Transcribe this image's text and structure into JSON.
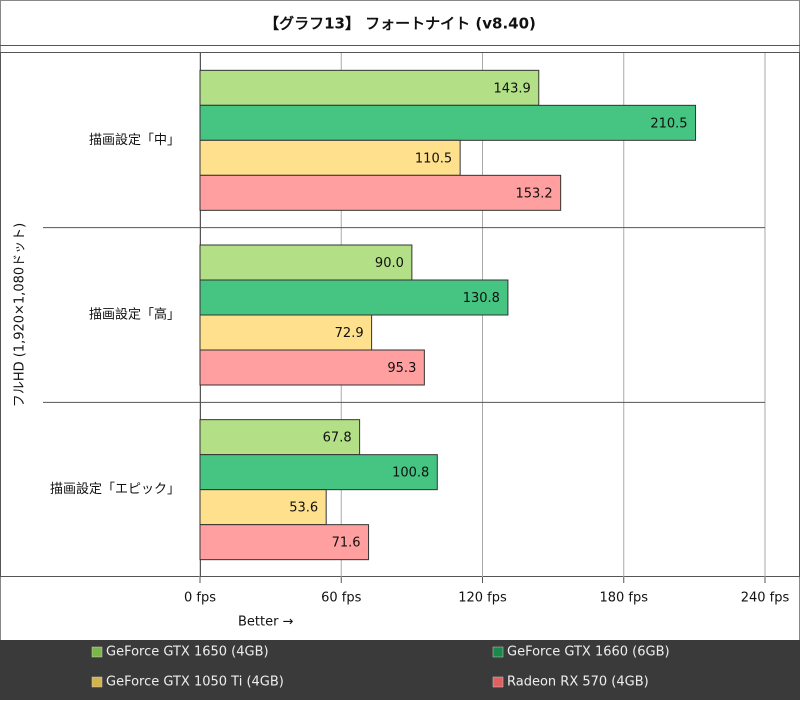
{
  "chart_data": {
    "type": "bar",
    "orientation": "horizontal",
    "title": "【グラフ13】 フォートナイト (v8.40)",
    "y_label": "フルHD (1,920×1,080ドット)",
    "x_label": "Better →",
    "categories": [
      "描画設定「中」",
      "描画設定「高」",
      "描画設定「エピック」"
    ],
    "series": [
      {
        "name": "GeForce GTX 1650 (4GB)",
        "color": "#b3df86",
        "legend_color": "#7ab648",
        "values": [
          143.9,
          90.0,
          67.8
        ],
        "value_labels": [
          "143.9",
          "90.0",
          "67.8"
        ]
      },
      {
        "name": "GeForce GTX 1660 (6GB)",
        "color": "#45c482",
        "legend_color": "#1a8a4a",
        "values": [
          210.5,
          130.8,
          100.8
        ],
        "value_labels": [
          "210.5",
          "130.8",
          "100.8"
        ]
      },
      {
        "name": "GeForce GTX 1050 Ti (4GB)",
        "color": "#ffe08c",
        "legend_color": "#d4b44a",
        "values": [
          110.5,
          72.9,
          53.6
        ],
        "value_labels": [
          "110.5",
          "72.9",
          "53.6"
        ]
      },
      {
        "name": "Radeon RX 570 (4GB)",
        "color": "#ff9f9f",
        "legend_color": "#e06060",
        "values": [
          153.2,
          95.3,
          71.6
        ],
        "value_labels": [
          "153.2",
          "95.3",
          "71.6"
        ]
      }
    ],
    "xlim": [
      0,
      240
    ],
    "xticks": [
      {
        "value": 0,
        "label": "0 fps"
      },
      {
        "value": 60,
        "label": "60 fps"
      },
      {
        "value": 120,
        "label": "120 fps"
      },
      {
        "value": 180,
        "label": "180 fps"
      },
      {
        "value": 240,
        "label": "240 fps"
      }
    ],
    "grid": true
  }
}
